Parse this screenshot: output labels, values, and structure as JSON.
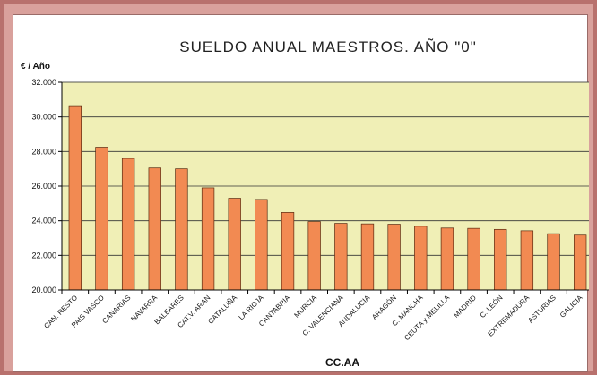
{
  "chart_data": {
    "type": "bar",
    "title": "SUELDO ANUAL MAESTROS. AÑO \"0\"",
    "ylabel": "€ / Año",
    "xlabel": "CC.AA",
    "ylim": [
      20000,
      32000
    ],
    "yticks": [
      "20.000",
      "22.000",
      "24.000",
      "26.000",
      "28.000",
      "30.000",
      "32.000"
    ],
    "grid": true,
    "categories": [
      "CAN. RESTO",
      "PAIS VASCO",
      "CANARIAS",
      "NAVARRA",
      "BALEARES",
      "CAT.V. ARAN",
      "CATALUÑA",
      "LA RIOJA",
      "CANTABRIA",
      "MURCIA",
      "C. VALENCIANA",
      "ANDALUCIA",
      "ARAGÓN",
      "C. MANCHA",
      "CEUTA y MELILLA",
      "MADRID",
      "C. LEÓN",
      "EXTREMADURA",
      "ASTURIAS",
      "GALICIA"
    ],
    "values": [
      30650,
      28250,
      27600,
      27050,
      27000,
      25900,
      25300,
      25230,
      24480,
      23950,
      23850,
      23820,
      23800,
      23680,
      23580,
      23560,
      23500,
      23420,
      23250,
      23170
    ],
    "colors": {
      "bar": "#f28a52",
      "bar_edge": "#5a2a10",
      "plot_bg": "#f0efb6",
      "grid": "#333333"
    }
  }
}
